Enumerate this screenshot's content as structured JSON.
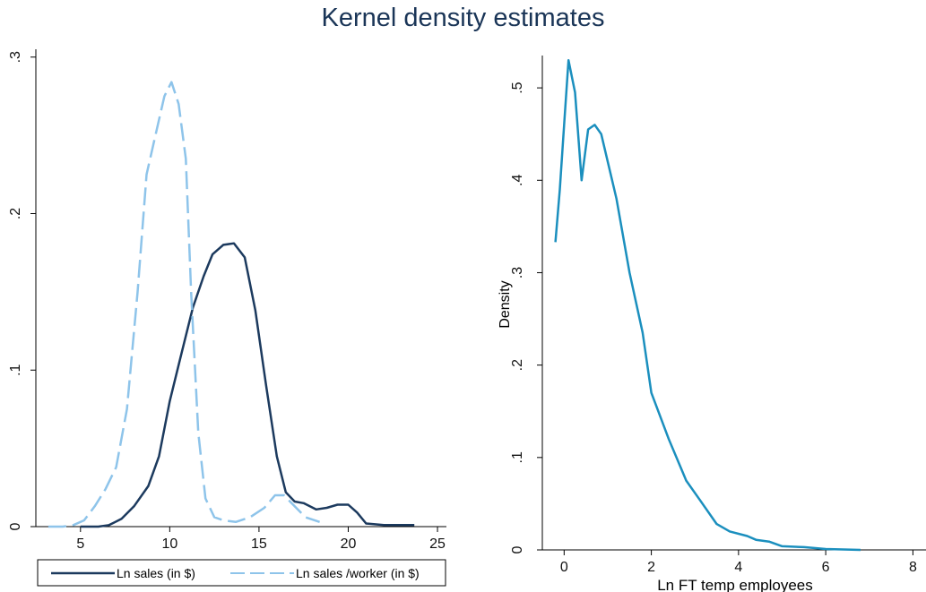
{
  "title": "Kernel density estimates",
  "chart_data": [
    {
      "type": "line",
      "xlabel": "",
      "ylabel": "",
      "xlim": [
        2.5,
        25.5
      ],
      "ylim": [
        0,
        0.305
      ],
      "xticks": [
        5,
        10,
        15,
        20,
        25
      ],
      "yticks": [
        0,
        0.1,
        0.2,
        0.3
      ],
      "xtick_labels": [
        "5",
        "10",
        "15",
        "20",
        "25"
      ],
      "ytick_labels": [
        "0",
        ".1",
        ".2",
        ".3"
      ],
      "grid": false,
      "legend": {
        "placement": "bottom",
        "boxed": true
      },
      "series": [
        {
          "name": "Ln sales (in $)",
          "color": "#1c3a5e",
          "dash": "solid",
          "points": [
            [
              5,
              0
            ],
            [
              6,
              0
            ],
            [
              6.6,
              0.001
            ],
            [
              7.3,
              0.005
            ],
            [
              8,
              0.013
            ],
            [
              8.8,
              0.026
            ],
            [
              9.4,
              0.045
            ],
            [
              10,
              0.08
            ],
            [
              10.6,
              0.108
            ],
            [
              11.3,
              0.14
            ],
            [
              11.9,
              0.16
            ],
            [
              12.4,
              0.174
            ],
            [
              13,
              0.18
            ],
            [
              13.6,
              0.181
            ],
            [
              14.2,
              0.172
            ],
            [
              14.8,
              0.138
            ],
            [
              15.4,
              0.09
            ],
            [
              16,
              0.045
            ],
            [
              16.5,
              0.022
            ],
            [
              17,
              0.016
            ],
            [
              17.5,
              0.015
            ],
            [
              18.2,
              0.011
            ],
            [
              18.8,
              0.012
            ],
            [
              19.4,
              0.014
            ],
            [
              20,
              0.014
            ],
            [
              20.5,
              0.009
            ],
            [
              21,
              0.002
            ],
            [
              22,
              0.001
            ],
            [
              23.7,
              0.001
            ]
          ]
        },
        {
          "name": "Ln sales /worker (in $)",
          "color": "#8ec4ea",
          "dash": "dashed",
          "points": [
            [
              3.2,
              0
            ],
            [
              4,
              0
            ],
            [
              4.6,
              0.001
            ],
            [
              5.2,
              0.004
            ],
            [
              5.8,
              0.013
            ],
            [
              6.4,
              0.024
            ],
            [
              7,
              0.038
            ],
            [
              7.6,
              0.075
            ],
            [
              8.2,
              0.15
            ],
            [
              8.7,
              0.225
            ],
            [
              9.2,
              0.25
            ],
            [
              9.7,
              0.275
            ],
            [
              10.1,
              0.284
            ],
            [
              10.5,
              0.27
            ],
            [
              10.9,
              0.235
            ],
            [
              11.2,
              0.15
            ],
            [
              11.6,
              0.06
            ],
            [
              12,
              0.018
            ],
            [
              12.5,
              0.006
            ],
            [
              13,
              0.004
            ],
            [
              13.7,
              0.003
            ],
            [
              14.5,
              0.006
            ],
            [
              15.3,
              0.012
            ],
            [
              15.9,
              0.02
            ],
            [
              16.4,
              0.02
            ],
            [
              17,
              0.013
            ],
            [
              17.6,
              0.006
            ],
            [
              18.4,
              0.003
            ]
          ]
        }
      ]
    },
    {
      "type": "line",
      "xlabel": "Ln FT temp employees",
      "ylabel": "Density",
      "xlim": [
        -0.5,
        8.3
      ],
      "ylim": [
        0,
        0.535
      ],
      "xticks": [
        0,
        2,
        4,
        6,
        8
      ],
      "yticks": [
        0,
        0.1,
        0.2,
        0.3,
        0.4,
        0.5
      ],
      "xtick_labels": [
        "0",
        "2",
        "4",
        "6",
        "8"
      ],
      "ytick_labels": [
        "0",
        ".1",
        ".2",
        ".3",
        ".4",
        ".5"
      ],
      "grid": false,
      "series": [
        {
          "color": "#1b8fbe",
          "dash": "solid",
          "points": [
            [
              -0.2,
              0.333
            ],
            [
              -0.1,
              0.39
            ],
            [
              0,
              0.46
            ],
            [
              0.1,
              0.53
            ],
            [
              0.25,
              0.495
            ],
            [
              0.4,
              0.4
            ],
            [
              0.55,
              0.455
            ],
            [
              0.7,
              0.46
            ],
            [
              0.85,
              0.45
            ],
            [
              1,
              0.42
            ],
            [
              1.2,
              0.38
            ],
            [
              1.5,
              0.3
            ],
            [
              1.8,
              0.235
            ],
            [
              2,
              0.17
            ],
            [
              2.4,
              0.12
            ],
            [
              2.8,
              0.075
            ],
            [
              3.1,
              0.055
            ],
            [
              3.5,
              0.028
            ],
            [
              3.8,
              0.02
            ],
            [
              4.2,
              0.015
            ],
            [
              4.4,
              0.011
            ],
            [
              4.7,
              0.009
            ],
            [
              5,
              0.004
            ],
            [
              5.5,
              0.003
            ],
            [
              6,
              0.001
            ],
            [
              6.8,
              0
            ]
          ]
        }
      ]
    }
  ]
}
